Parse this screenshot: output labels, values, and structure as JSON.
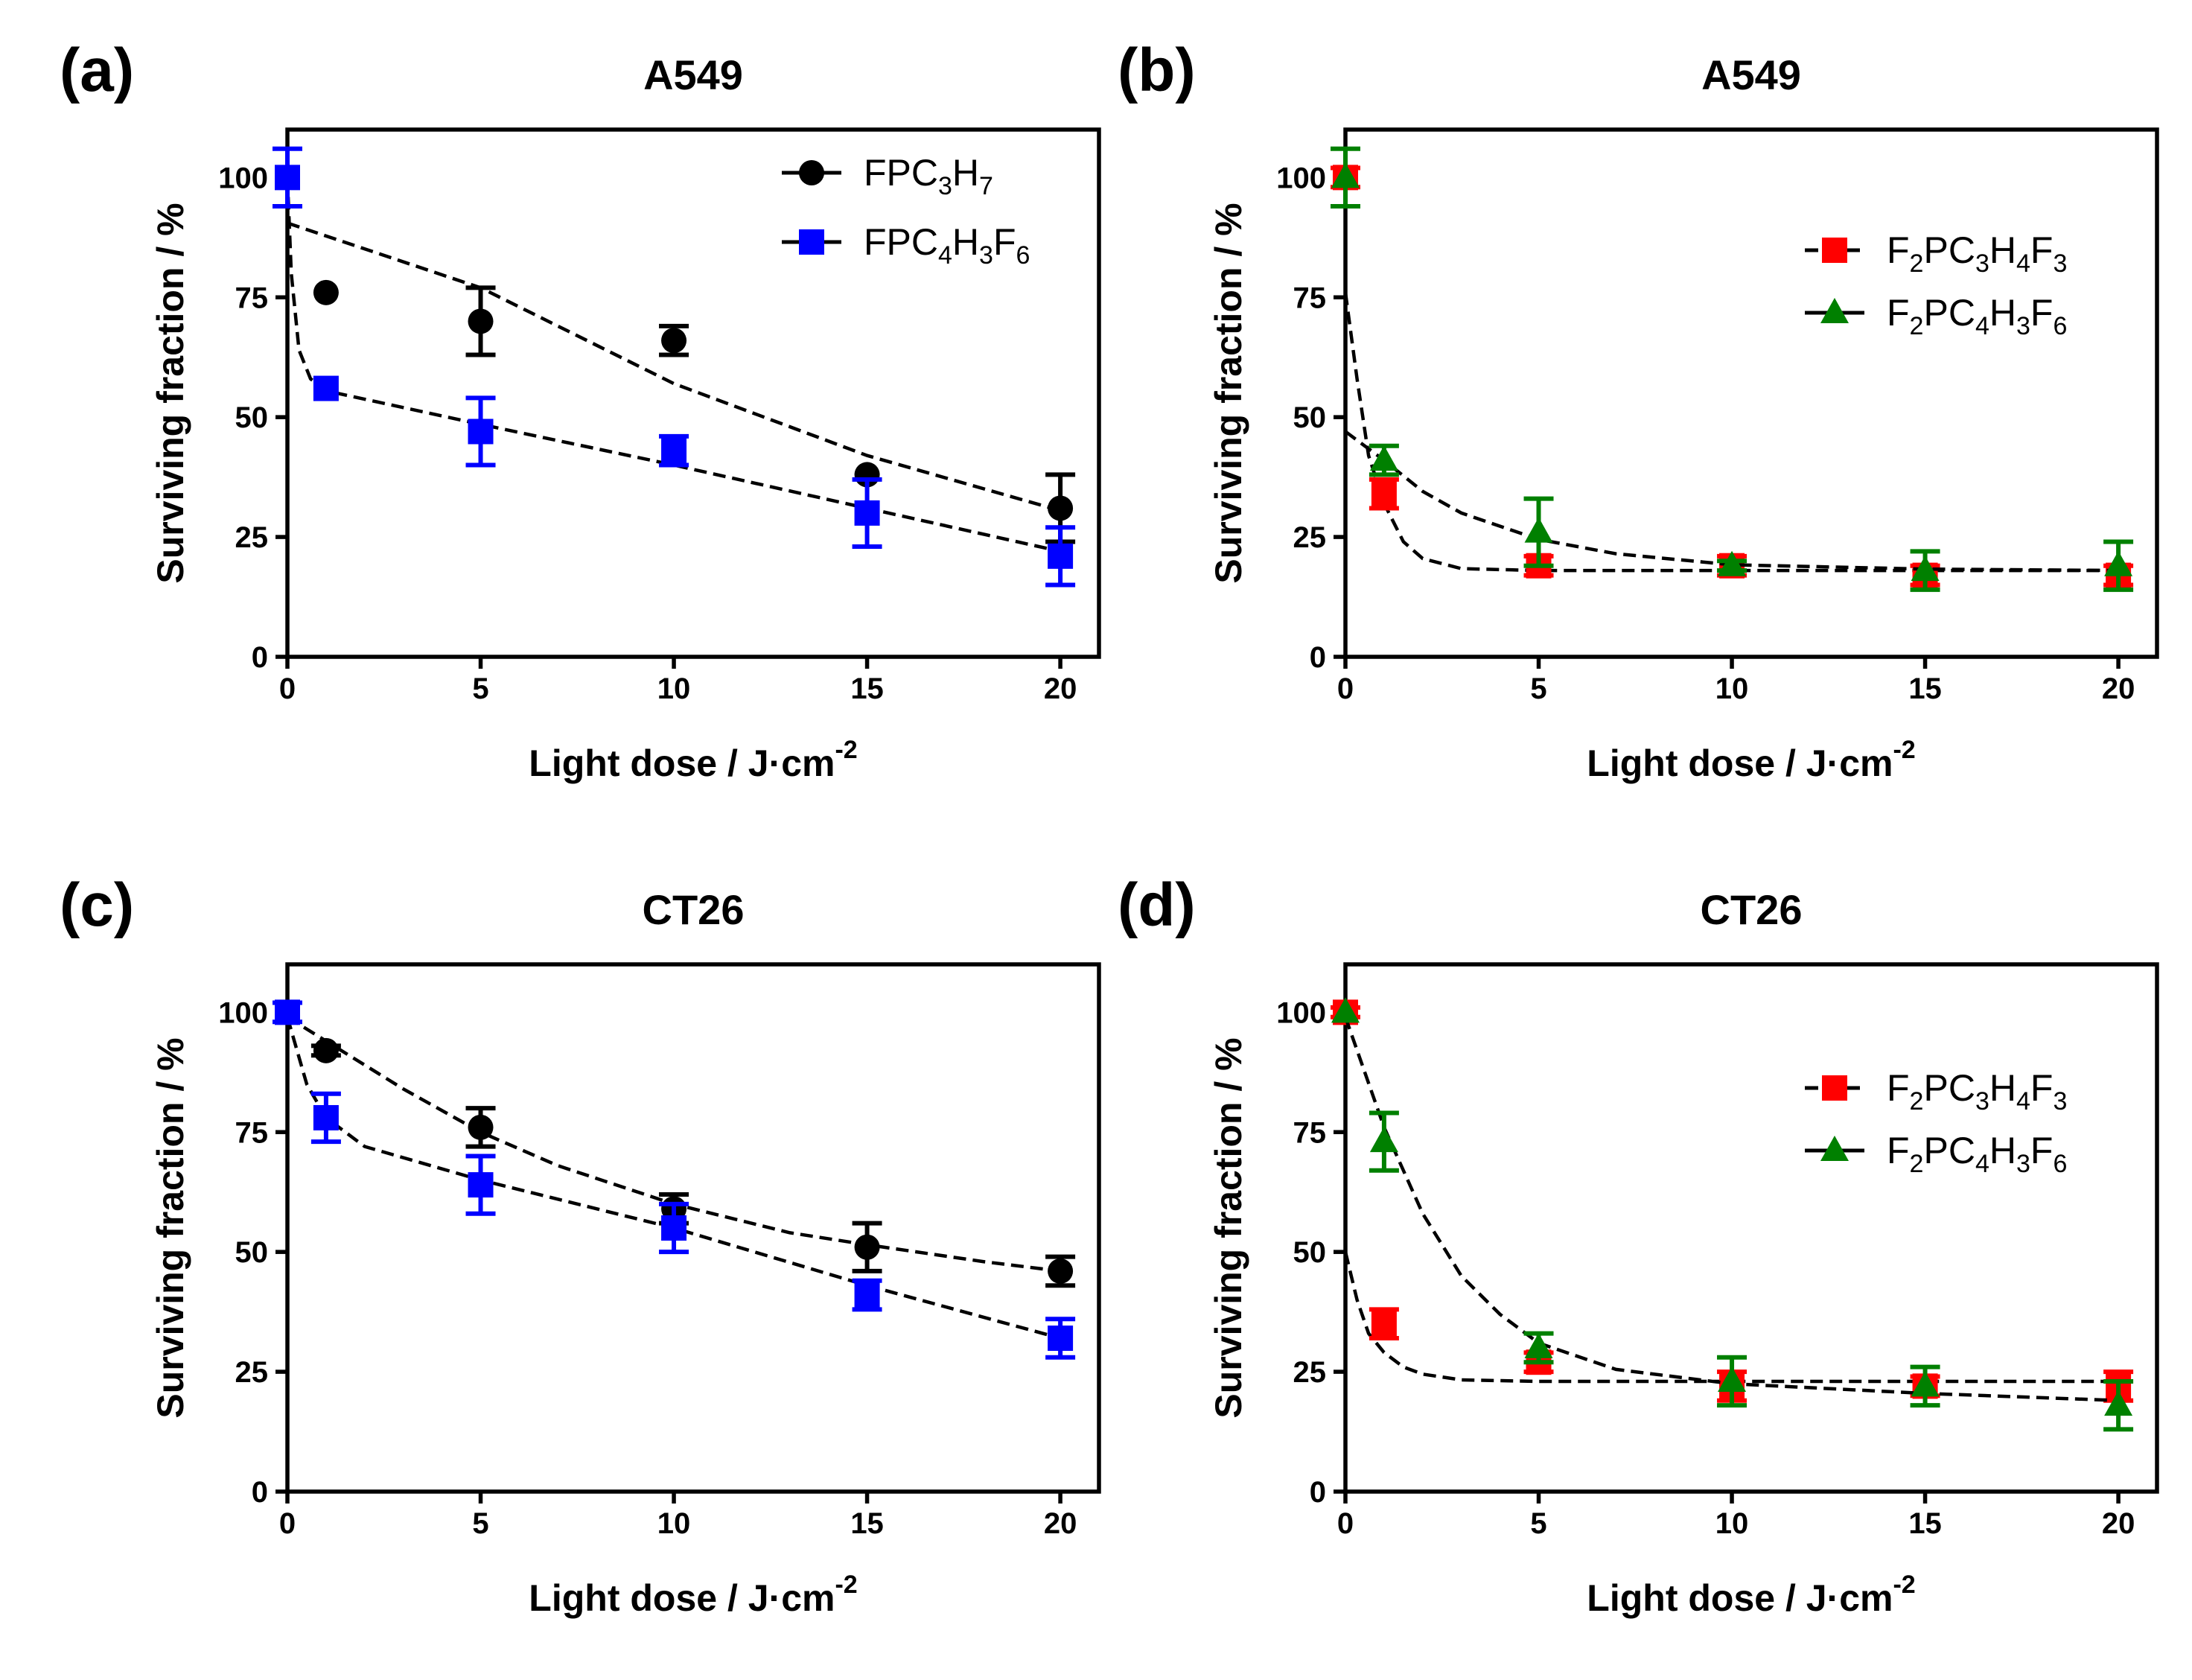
{
  "colors": {
    "FPC3H7": "#000000",
    "FPC4H3F6": "#0000ff",
    "F2PC3H4F3": "#ff0000",
    "F2PC4H3F6": "#008000"
  },
  "chart_data": [
    {
      "panel_label": "(a)",
      "type": "scatter",
      "title": "A549",
      "xlabel": "Light dose / J·cm",
      "xlabel_sup": "-2",
      "ylabel": "Surviving fraction / %",
      "xlim": [
        0,
        21
      ],
      "ylim": [
        0,
        110
      ],
      "xticks": [
        0,
        5,
        10,
        15,
        20
      ],
      "yticks": [
        0,
        25,
        50,
        75,
        100
      ],
      "legend_position": "top-right",
      "grid": false,
      "series": [
        {
          "name": "FPC3H7",
          "legend_label": [
            {
              "t": "FPC"
            },
            {
              "t": "3",
              "sub": true
            },
            {
              "t": "H"
            },
            {
              "t": "7",
              "sub": true
            }
          ],
          "color": "#000000",
          "marker": "circle",
          "x": [
            1,
            5,
            10,
            15,
            20
          ],
          "y": [
            76,
            70,
            66,
            38,
            31
          ],
          "err": [
            0,
            7,
            3,
            0,
            7
          ],
          "fit_line": [
            [
              0,
              90.5
            ],
            [
              5,
              77
            ],
            [
              10,
              57
            ],
            [
              15,
              42
            ],
            [
              20,
              30.5
            ]
          ]
        },
        {
          "name": "FPC4H3F6",
          "legend_label": [
            {
              "t": "FPC"
            },
            {
              "t": "4",
              "sub": true
            },
            {
              "t": "H"
            },
            {
              "t": "3",
              "sub": true
            },
            {
              "t": "F"
            },
            {
              "t": "6",
              "sub": true
            }
          ],
          "color": "#0000ff",
          "marker": "square",
          "x": [
            0,
            1,
            5,
            10,
            15,
            20
          ],
          "y": [
            100,
            56,
            47,
            43,
            30,
            21
          ],
          "err": [
            6,
            0,
            7,
            3,
            7,
            6
          ],
          "fit_line": [
            [
              0,
              100
            ],
            [
              0.1,
              80
            ],
            [
              0.3,
              64
            ],
            [
              0.6,
              58
            ],
            [
              1,
              55.5
            ],
            [
              5,
              48.5
            ],
            [
              10,
              40
            ],
            [
              15,
              31
            ],
            [
              20,
              22
            ]
          ]
        }
      ]
    },
    {
      "panel_label": "(b)",
      "type": "scatter",
      "title": "A549",
      "xlabel": "Light dose / J·cm",
      "xlabel_sup": "-2",
      "ylabel": "Surviving fraction / %",
      "xlim": [
        0,
        21
      ],
      "ylim": [
        0,
        110
      ],
      "xticks": [
        0,
        5,
        10,
        15,
        20
      ],
      "yticks": [
        0,
        25,
        50,
        75,
        100
      ],
      "legend_position": "top-right",
      "grid": false,
      "series": [
        {
          "name": "F2PC3H4F3",
          "legend_label": [
            {
              "t": "F"
            },
            {
              "t": "2",
              "sub": true
            },
            {
              "t": "PC"
            },
            {
              "t": "3",
              "sub": true
            },
            {
              "t": "H"
            },
            {
              "t": "4",
              "sub": true
            },
            {
              "t": "F"
            },
            {
              "t": "3",
              "sub": true
            }
          ],
          "color": "#ff0000",
          "marker": "square",
          "x": [
            0,
            1,
            5,
            10,
            15,
            20
          ],
          "y": [
            100,
            34,
            19,
            19,
            17,
            17
          ],
          "err": [
            2,
            3,
            2,
            2,
            2,
            2
          ],
          "fit_line": [
            [
              0,
              76
            ],
            [
              0.3,
              58
            ],
            [
              0.6,
              42
            ],
            [
              1,
              32
            ],
            [
              1.5,
              24
            ],
            [
              2,
              20.5
            ],
            [
              3,
              18.4
            ],
            [
              5,
              18
            ],
            [
              20,
              18
            ]
          ]
        },
        {
          "name": "F2PC4H3F6",
          "legend_label": [
            {
              "t": "F"
            },
            {
              "t": "2",
              "sub": true
            },
            {
              "t": "PC"
            },
            {
              "t": "4",
              "sub": true
            },
            {
              "t": "H"
            },
            {
              "t": "3",
              "sub": true
            },
            {
              "t": "F"
            },
            {
              "t": "6",
              "sub": true
            }
          ],
          "color": "#008000",
          "marker": "triangle",
          "x": [
            0,
            1,
            5,
            10,
            15,
            20
          ],
          "y": [
            100,
            41,
            26,
            19,
            18,
            19
          ],
          "err": [
            6,
            3,
            7,
            1,
            4,
            5
          ],
          "fit_line": [
            [
              0,
              47
            ],
            [
              1,
              41
            ],
            [
              2,
              34.5
            ],
            [
              3,
              30
            ],
            [
              5,
              24.5
            ],
            [
              7,
              21.5
            ],
            [
              10,
              19.2
            ],
            [
              15,
              18.3
            ],
            [
              20,
              18
            ]
          ]
        }
      ]
    },
    {
      "panel_label": "(c)",
      "type": "scatter",
      "title": "CT26",
      "xlabel": "Light dose / J·cm",
      "xlabel_sup": "-2",
      "ylabel": "Surviving fraction / %",
      "xlim": [
        0,
        21
      ],
      "ylim": [
        0,
        110
      ],
      "xticks": [
        0,
        5,
        10,
        15,
        20
      ],
      "yticks": [
        0,
        25,
        50,
        75,
        100
      ],
      "grid": false,
      "series": [
        {
          "name": "FPC3H7",
          "color": "#000000",
          "marker": "circle",
          "x": [
            0,
            1,
            5,
            10,
            15,
            20
          ],
          "y": [
            100,
            92,
            76,
            59,
            51,
            46
          ],
          "err": [
            0,
            1,
            4,
            3,
            5,
            3
          ],
          "fit_line": [
            [
              0,
              99
            ],
            [
              1,
              94
            ],
            [
              3,
              84
            ],
            [
              5,
              75
            ],
            [
              7,
              68
            ],
            [
              10,
              60
            ],
            [
              13,
              54
            ],
            [
              15,
              51.5
            ],
            [
              18,
              48
            ],
            [
              20,
              46
            ]
          ]
        },
        {
          "name": "FPC4H3F6",
          "color": "#0000ff",
          "marker": "square",
          "x": [
            0,
            1,
            5,
            10,
            15,
            20
          ],
          "y": [
            100,
            78,
            64,
            55,
            41,
            32
          ],
          "err": [
            2,
            5,
            6,
            5,
            3,
            4
          ],
          "fit_line": [
            [
              0,
              99
            ],
            [
              0.5,
              85
            ],
            [
              1,
              78
            ],
            [
              2,
              72
            ],
            [
              5,
              65
            ],
            [
              10,
              55
            ],
            [
              15,
              43
            ],
            [
              20,
              32
            ]
          ]
        }
      ]
    },
    {
      "panel_label": "(d)",
      "type": "scatter",
      "title": "CT26",
      "xlabel": "Light dose / J·cm",
      "xlabel_sup": "-2",
      "ylabel": "Surviving fraction / %",
      "xlim": [
        0,
        21
      ],
      "ylim": [
        0,
        110
      ],
      "xticks": [
        0,
        5,
        10,
        15,
        20
      ],
      "yticks": [
        0,
        25,
        50,
        75,
        100
      ],
      "legend_position": "top-right",
      "grid": false,
      "series": [
        {
          "name": "F2PC3H4F3",
          "legend_label": [
            {
              "t": "F"
            },
            {
              "t": "2",
              "sub": true
            },
            {
              "t": "PC"
            },
            {
              "t": "3",
              "sub": true
            },
            {
              "t": "H"
            },
            {
              "t": "4",
              "sub": true
            },
            {
              "t": "F"
            },
            {
              "t": "3",
              "sub": true
            }
          ],
          "color": "#ff0000",
          "marker": "square",
          "x": [
            0,
            1,
            5,
            10,
            15,
            20
          ],
          "y": [
            100,
            35,
            27,
            22,
            22,
            22
          ],
          "err": [
            1,
            3,
            2,
            3,
            2,
            3
          ],
          "fit_line": [
            [
              0,
              50
            ],
            [
              0.3,
              40
            ],
            [
              0.6,
              33
            ],
            [
              1,
              29
            ],
            [
              1.5,
              26
            ],
            [
              2,
              24.5
            ],
            [
              3,
              23.3
            ],
            [
              5,
              23
            ],
            [
              20,
              23
            ]
          ]
        },
        {
          "name": "F2PC4H3F6",
          "legend_label": [
            {
              "t": "F"
            },
            {
              "t": "2",
              "sub": true
            },
            {
              "t": "PC"
            },
            {
              "t": "4",
              "sub": true
            },
            {
              "t": "H"
            },
            {
              "t": "3",
              "sub": true
            },
            {
              "t": "F"
            },
            {
              "t": "6",
              "sub": true
            }
          ],
          "color": "#008000",
          "marker": "triangle",
          "x": [
            0,
            1,
            5,
            10,
            15,
            20
          ],
          "y": [
            100,
            73,
            30,
            23,
            22,
            18
          ],
          "err": [
            0,
            6,
            3,
            5,
            4,
            5
          ],
          "fit_line": [
            [
              0,
              99
            ],
            [
              1,
              76
            ],
            [
              2,
              58
            ],
            [
              3,
              45
            ],
            [
              4,
              37
            ],
            [
              5,
              31
            ],
            [
              7,
              25.5
            ],
            [
              10,
              22.5
            ],
            [
              15,
              20.5
            ],
            [
              20,
              19
            ]
          ]
        }
      ]
    }
  ]
}
